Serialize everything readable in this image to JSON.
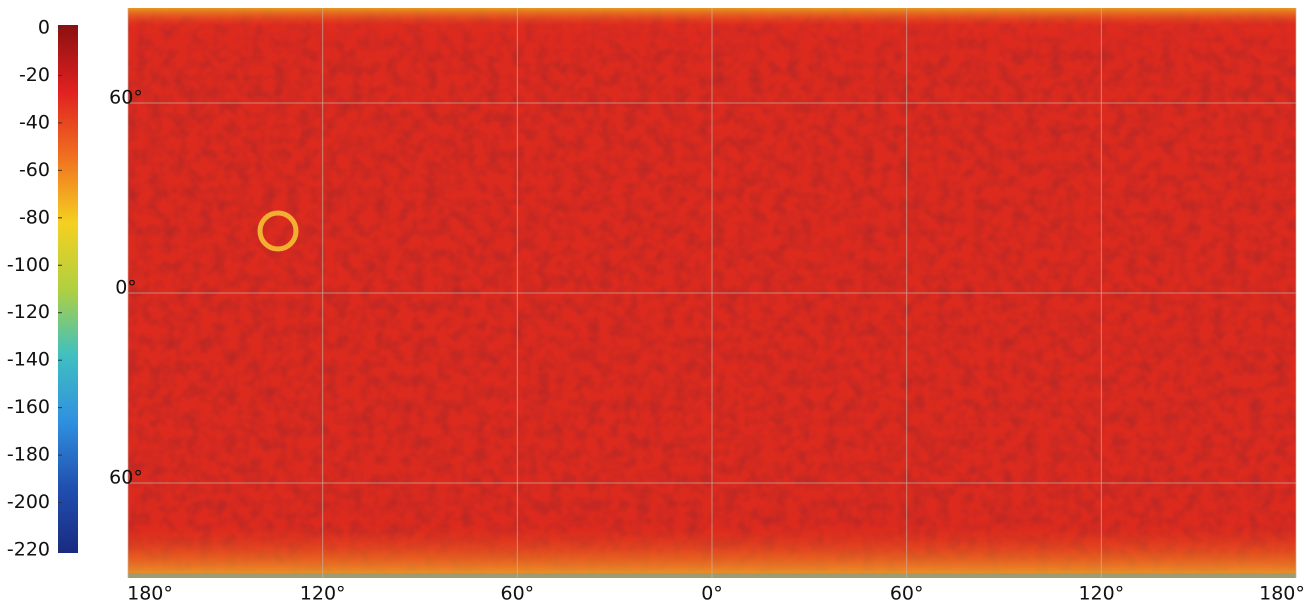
{
  "chart_data": {
    "type": "map",
    "xlim": [
      -180,
      180
    ],
    "ylim": [
      -90,
      90
    ],
    "xticks": [
      {
        "value": -180,
        "label": "180°"
      },
      {
        "value": -120,
        "label": "120°"
      },
      {
        "value": -60,
        "label": "60°"
      },
      {
        "value": 0,
        "label": "0°"
      },
      {
        "value": 60,
        "label": "60°"
      },
      {
        "value": 120,
        "label": "120°"
      },
      {
        "value": 180,
        "label": "180°"
      }
    ],
    "yticks": [
      {
        "value": 60,
        "label": "60°"
      },
      {
        "value": 0,
        "label": "0°"
      },
      {
        "value": -60,
        "label": "60°"
      }
    ],
    "grid": true,
    "colorbar": {
      "clim": [
        -220,
        0
      ],
      "ticks": [
        0,
        -20,
        -40,
        -60,
        -80,
        -100,
        -120,
        -140,
        -160,
        -180,
        -200,
        -220
      ],
      "colors": [
        "#8b1010",
        "#e02020",
        "#f07020",
        "#f5d020",
        "#b0d040",
        "#40c0c0",
        "#3090e0",
        "#2050b0",
        "#1a2a80"
      ]
    }
  }
}
